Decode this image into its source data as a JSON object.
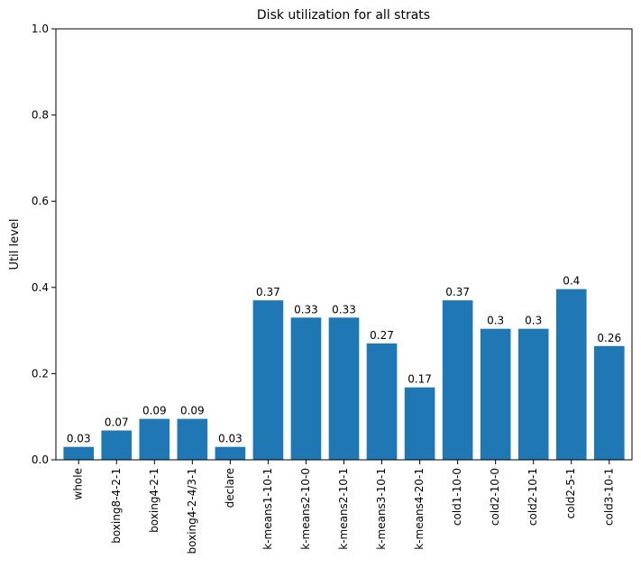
{
  "chart_data": {
    "type": "bar",
    "title": "Disk utilization for all strats",
    "xlabel": "",
    "ylabel": "Util level",
    "ylim": [
      0,
      1
    ],
    "yticks": [
      0,
      0.2,
      0.4,
      0.6,
      0.8,
      1
    ],
    "ytick_labels": [
      "0.0",
      "0.2",
      "0.4",
      "0.6",
      "0.8",
      "1.0"
    ],
    "grid": false,
    "bar_color": "#1f77b4",
    "categories": [
      "whole",
      "boxing8-4-2-1",
      "boxing4-2-1",
      "boxing4-2-4/3-1",
      "declare",
      "k-means1-10-1",
      "k-means2-10-0",
      "k-means2-10-1",
      "k-means3-10-1",
      "k-means4-20-1",
      "cold1-10-0",
      "cold2-10-0",
      "cold2-10-1",
      "cold2-5-1",
      "cold3-10-1"
    ],
    "values": [
      0.03,
      0.068,
      0.095,
      0.095,
      0.03,
      0.37,
      0.33,
      0.33,
      0.27,
      0.168,
      0.37,
      0.304,
      0.304,
      0.396,
      0.264
    ],
    "data_labels": [
      "0.03",
      "0.07",
      "0.09",
      "0.09",
      "0.03",
      "0.37",
      "0.33",
      "0.33",
      "0.27",
      "0.17",
      "0.37",
      "0.3",
      "0.3",
      "0.4",
      "0.26"
    ]
  }
}
